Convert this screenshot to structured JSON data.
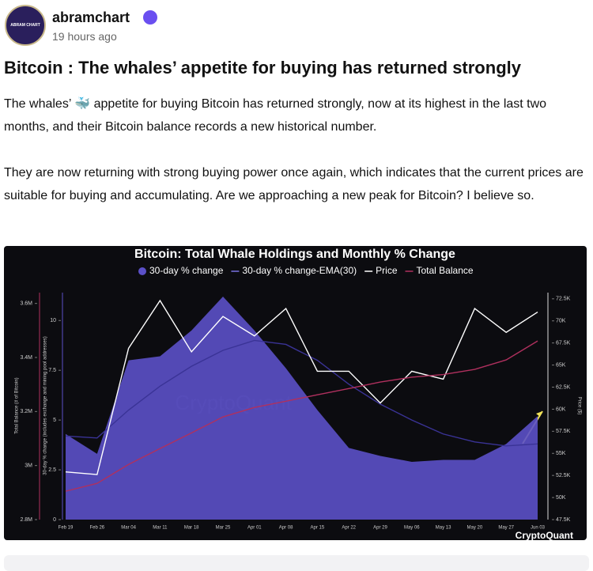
{
  "post": {
    "author": "abramchart",
    "avatar_text": "ABRAM CHART",
    "time": "19 hours ago",
    "title": "Bitcoin : The whales’ appetite for buying has returned strongly",
    "paragraphs": [
      "The whales’ 🐳 appetite for buying Bitcoin has returned strongly, now at its highest in the last two months, and their Bitcoin balance records a new historical number.",
      "They are now returning with strong buying power once again, which indicates that the current prices are suitable for buying and accumulating. Are we approaching a new peak for Bitcoin? I believe so."
    ]
  },
  "chart_data": {
    "type": "line",
    "title": "Bitcoin: Total Whale Holdings and Monthly % Change",
    "watermark": "CryptoQuant",
    "categories": [
      "Feb 19",
      "Feb 26",
      "Mar 04",
      "Mar 11",
      "Mar 18",
      "Mar 25",
      "Apr 01",
      "Apr 08",
      "Apr 15",
      "Apr 22",
      "Apr 29",
      "May 06",
      "May 13",
      "May 20",
      "May 27",
      "Jun 03"
    ],
    "ylabel": "30-day % change (includes exchange and mining pool addresses)",
    "y2label": "Price ($)",
    "y3label": "Total Balance (# of Bitcoin)",
    "ylim": [
      0,
      11.4
    ],
    "yticks": [
      0,
      2.5,
      5,
      7.5,
      10
    ],
    "y2lim": [
      47500,
      73200
    ],
    "y2ticks": [
      {
        "value": 47500,
        "label": "47.5K"
      },
      {
        "value": 50000,
        "label": "50K"
      },
      {
        "value": 52500,
        "label": "52.5K"
      },
      {
        "value": 55000,
        "label": "55K"
      },
      {
        "value": 57500,
        "label": "57.5K"
      },
      {
        "value": 60000,
        "label": "60K"
      },
      {
        "value": 62500,
        "label": "62.5K"
      },
      {
        "value": 65000,
        "label": "65K"
      },
      {
        "value": 67500,
        "label": "67.5K"
      },
      {
        "value": 70000,
        "label": "70K"
      },
      {
        "value": 72500,
        "label": "72.5K"
      }
    ],
    "y3lim": [
      2800000,
      3640000
    ],
    "y3ticks": [
      {
        "value": 2800000,
        "label": "2.8M"
      },
      {
        "value": 3000000,
        "label": "3M"
      },
      {
        "value": 3200000,
        "label": "3.2M"
      },
      {
        "value": 3400000,
        "label": "3.4M"
      },
      {
        "value": 3600000,
        "label": "3.6M"
      }
    ],
    "series": [
      {
        "name": "30-day % change",
        "kind": "area",
        "axis": "y",
        "color": "#5b50c8",
        "values": [
          4.3,
          3.3,
          8,
          8.2,
          9.5,
          11.2,
          9.5,
          7.6,
          5.5,
          3.6,
          3.2,
          2.9,
          3.0,
          3.0,
          3.8,
          5.2
        ]
      },
      {
        "name": "30-day % change-EMA(30)",
        "kind": "line",
        "axis": "y",
        "color": "#3a3396",
        "values": [
          4.2,
          4.1,
          5.5,
          6.7,
          7.7,
          8.5,
          9.0,
          8.8,
          8.0,
          6.8,
          5.8,
          5.0,
          4.3,
          3.9,
          3.7,
          3.8
        ]
      },
      {
        "name": "Price",
        "kind": "line",
        "axis": "y2",
        "color": "#ffffff",
        "values": [
          52900,
          52600,
          66900,
          72300,
          66500,
          70500,
          68300,
          71400,
          64300,
          64300,
          60700,
          64300,
          63400,
          71400,
          68700,
          71000
        ]
      },
      {
        "name": "Total Balance",
        "kind": "line",
        "axis": "y3",
        "color": "#b0305e",
        "values": [
          2905000,
          2934000,
          3004000,
          3063000,
          3121000,
          3180000,
          3215000,
          3238000,
          3262000,
          3285000,
          3309000,
          3327000,
          3337000,
          3356000,
          3391000,
          3461000
        ]
      }
    ]
  }
}
